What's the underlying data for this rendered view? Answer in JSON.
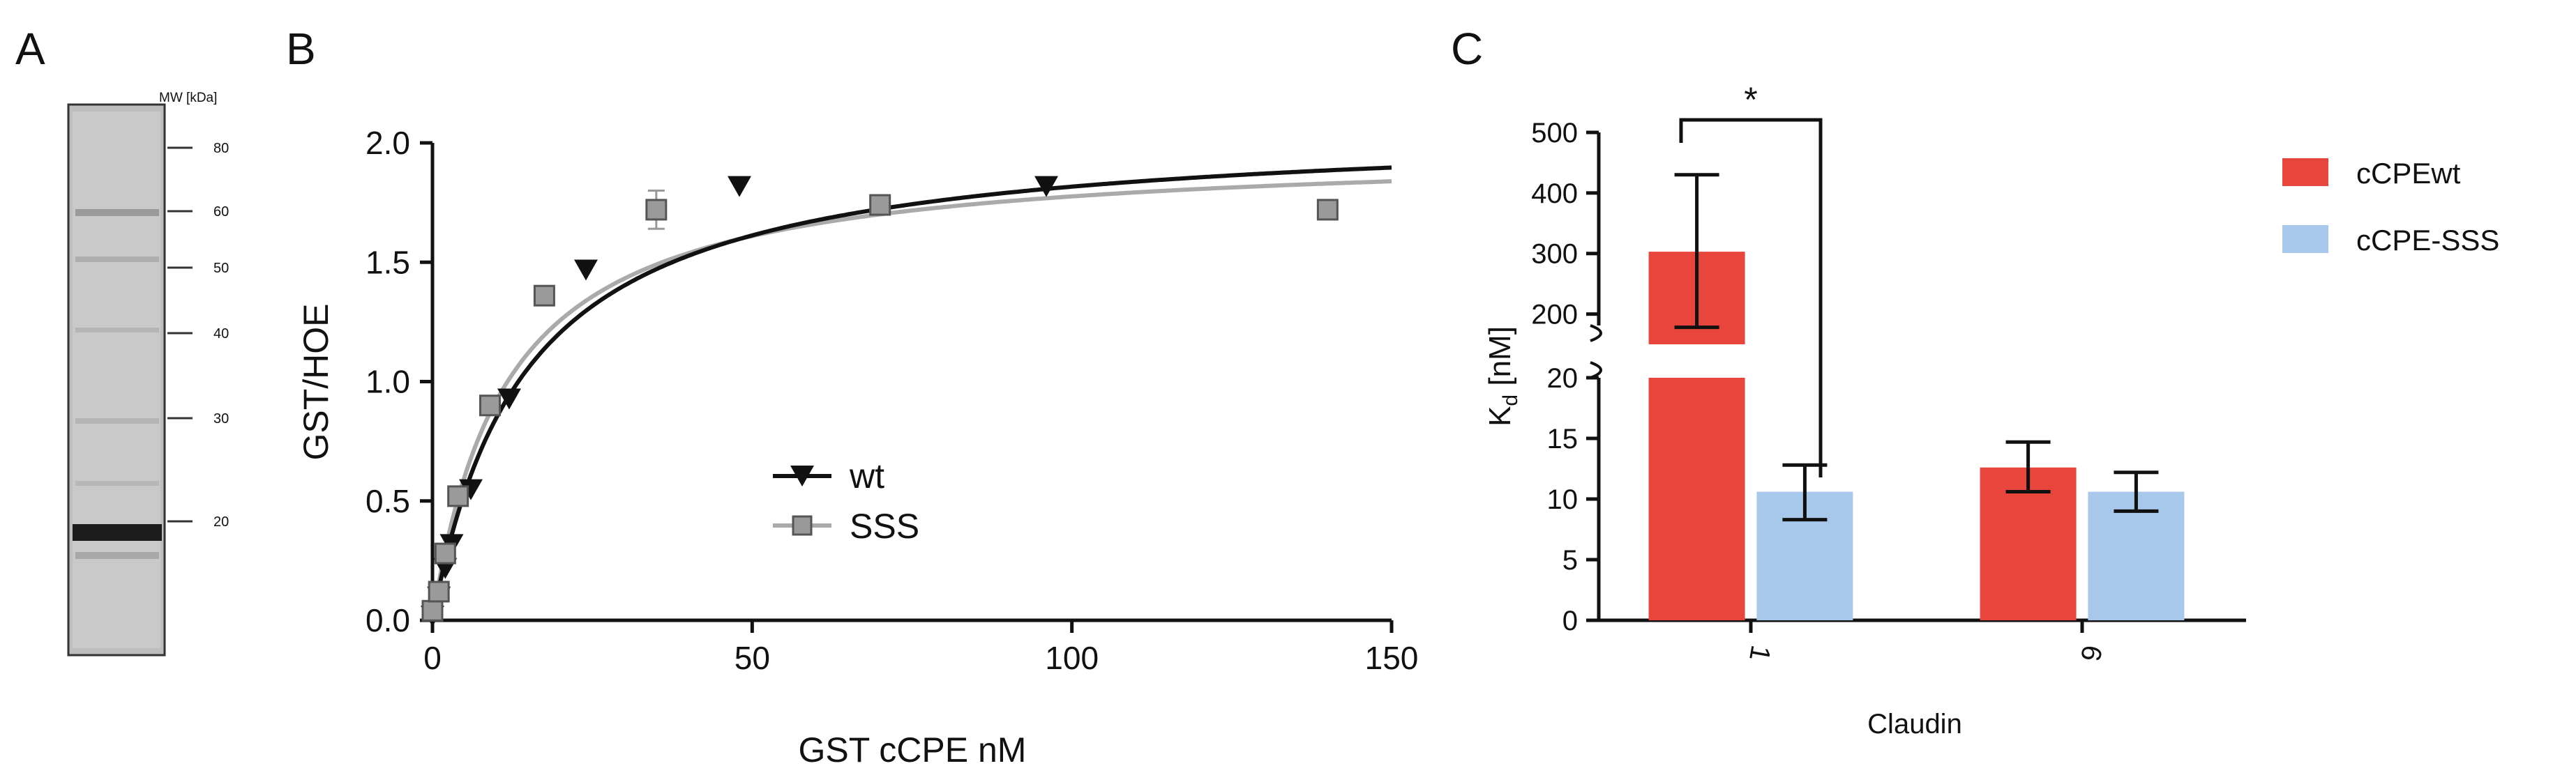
{
  "panels": {
    "a": {
      "letter": "A",
      "mw_header": "MW [kDa]",
      "markers": [
        "80",
        "60",
        "50",
        "40",
        "30",
        "20"
      ]
    },
    "b": {
      "letter": "B"
    },
    "c": {
      "letter": "C"
    }
  },
  "chart_data": [
    {
      "id": "B",
      "type": "scatter",
      "title": "",
      "xlabel": "GST cCPE nM",
      "ylabel": "GST/HOE",
      "xlim": [
        0,
        150
      ],
      "ylim": [
        0,
        2.0
      ],
      "xticks": [
        "0",
        "50",
        "100",
        "150"
      ],
      "yticks": [
        "0.0",
        "0.5",
        "1.0",
        "1.5",
        "2.0"
      ],
      "legend_position": "center",
      "series": [
        {
          "name": "wt",
          "marker": "triangle-down",
          "color": "#111111",
          "x": [
            0,
            1,
            2,
            3,
            6,
            12,
            24,
            48,
            96
          ],
          "y": [
            0.02,
            0.1,
            0.22,
            0.32,
            0.55,
            0.93,
            1.47,
            1.82,
            1.82
          ],
          "fit": {
            "model": "one-site",
            "bmax": 2.08,
            "kd": 14.5
          }
        },
        {
          "name": "SSS",
          "marker": "square",
          "color": "#999999",
          "x": [
            0,
            1,
            2,
            4,
            9,
            17.5,
            35,
            70,
            140
          ],
          "y": [
            0.04,
            0.12,
            0.28,
            0.52,
            0.9,
            1.36,
            1.72,
            1.74,
            1.72
          ],
          "err": [
            0.02,
            0.02,
            0.02,
            0.03,
            0.03,
            0.03,
            0.08,
            0.04,
            0.03
          ],
          "fit": {
            "model": "one-site",
            "bmax": 1.98,
            "kd": 11.5
          }
        }
      ]
    },
    {
      "id": "C",
      "type": "bar",
      "title": "",
      "xlabel": "Claudin",
      "ylabel_main": "K",
      "ylabel_sub": "d",
      "ylabel_unit": " [nM]",
      "categories": [
        "1",
        "6"
      ],
      "axis_breaks": [
        {
          "segment": "lower",
          "range": [
            0,
            20
          ],
          "ticks": [
            "0",
            "5",
            "10",
            "15",
            "20"
          ]
        },
        {
          "segment": "upper",
          "range": [
            150,
            500
          ],
          "ticks": [
            "200",
            "300",
            "400",
            "500"
          ]
        }
      ],
      "legend_position": "top-right",
      "significance": {
        "label": "*",
        "between": [
          "cCPEwt @ 1",
          "cCPE-SSS @ 1"
        ]
      },
      "series": [
        {
          "name": "cCPEwt",
          "color": "#e8453c",
          "values": [
            303,
            12.6
          ],
          "err_low": [
            178,
            10.6
          ],
          "err_high": [
            430,
            14.7
          ]
        },
        {
          "name": "cCPE-SSS",
          "color": "#a7c8eb",
          "values": [
            10.6,
            10.6
          ],
          "err_low": [
            8.3,
            9.0
          ],
          "err_high": [
            12.8,
            12.2
          ]
        }
      ]
    }
  ]
}
